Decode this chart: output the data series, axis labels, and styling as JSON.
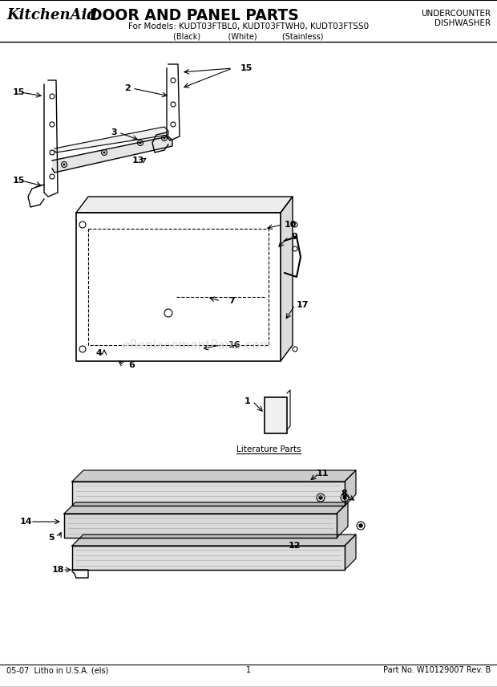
{
  "title_brand": "KitchenAid",
  "title_main": " DOOR AND PANEL PARTS",
  "subtitle": "For Models: KUDT03FTBL0, KUDT03FTWH0, KUDT03FTSS0",
  "subtitle2": "(Black)           (White)          (Stainless)",
  "top_right_line1": "UNDERCOUNTER",
  "top_right_line2": "DISHWASHER",
  "footer_left": "05-07  Litho in U.S.A. (els)",
  "footer_center": "1",
  "footer_right": "Part No. W10129007 Rev. B",
  "watermark": "eReplacementParts.com",
  "bg_color": "#ffffff",
  "line_color": "#000000",
  "diagram_color": "#333333",
  "header_bg": "#ffffff",
  "part_numbers": [
    1,
    2,
    3,
    4,
    5,
    6,
    7,
    8,
    9,
    10,
    11,
    12,
    13,
    14,
    15,
    16,
    17,
    18
  ]
}
